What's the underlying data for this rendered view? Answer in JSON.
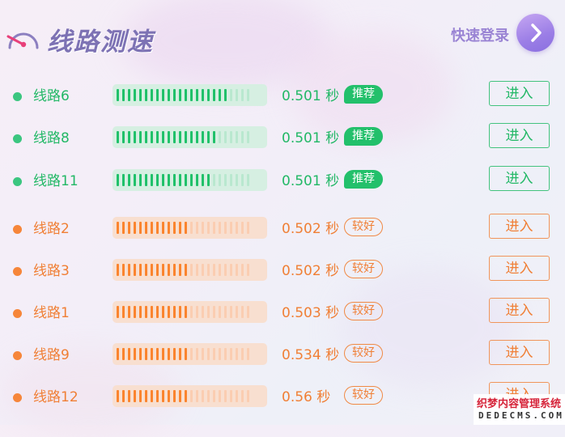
{
  "header": {
    "title": "线路测速",
    "login_label": "快速登录",
    "icons": {
      "speed": "speedometer-icon",
      "login": "chevron-right-icon"
    }
  },
  "lines": [
    {
      "name": "线路6",
      "time": "0.501 秒",
      "badge": "推荐",
      "level": "recommended",
      "bar_filled_fraction": 0.83,
      "enter_label": "进入"
    },
    {
      "name": "线路8",
      "time": "0.501 秒",
      "badge": "推荐",
      "level": "recommended",
      "bar_filled_fraction": 0.75,
      "enter_label": "进入"
    },
    {
      "name": "线路11",
      "time": "0.501 秒",
      "badge": "推荐",
      "level": "recommended",
      "bar_filled_fraction": 0.71,
      "enter_label": "进入"
    },
    {
      "name": "线路2",
      "time": "0.502 秒",
      "badge": "较好",
      "level": "good",
      "bar_filled_fraction": 0.54,
      "enter_label": "进入"
    },
    {
      "name": "线路3",
      "time": "0.502 秒",
      "badge": "较好",
      "level": "good",
      "bar_filled_fraction": 0.54,
      "enter_label": "进入"
    },
    {
      "name": "线路1",
      "time": "0.503 秒",
      "badge": "较好",
      "level": "good",
      "bar_filled_fraction": 0.54,
      "enter_label": "进入"
    },
    {
      "name": "线路9",
      "time": "0.534 秒",
      "badge": "较好",
      "level": "good",
      "bar_filled_fraction": 0.54,
      "enter_label": "进入"
    },
    {
      "name": "线路12",
      "time": "0.56 秒",
      "badge": "较好",
      "level": "good",
      "bar_filled_fraction": 0.54,
      "enter_label": "进入"
    }
  ],
  "colors": {
    "recommended": "#22b866",
    "good": "#f07f35",
    "title": "#7d72b4",
    "login": "#9a84d4"
  },
  "watermark": {
    "line1": "织梦内容管理系统",
    "line2": "DEDECMS.COM"
  }
}
